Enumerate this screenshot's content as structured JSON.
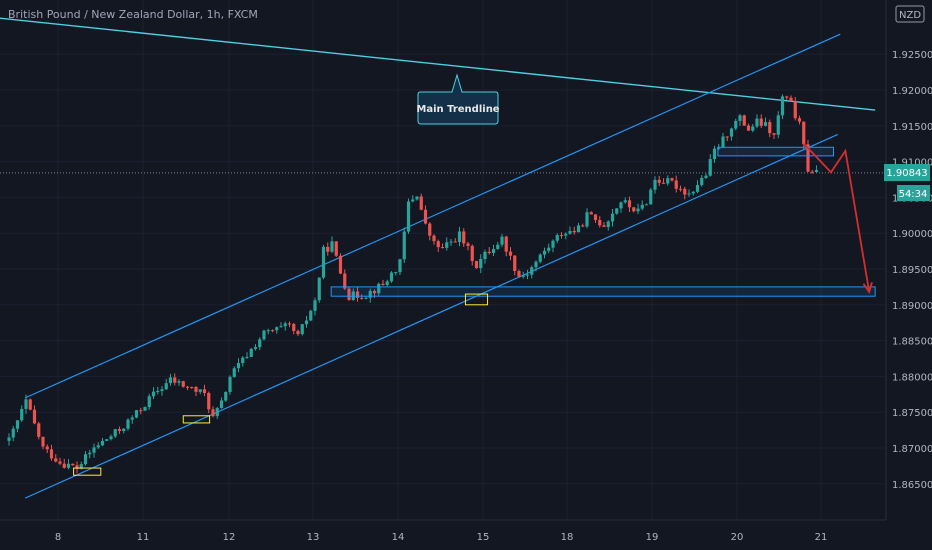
{
  "header": {
    "title": "British Pound / New Zealand Dollar, 1h, FXCM"
  },
  "currency_badge": "NZD",
  "price_label": "1.90843",
  "countdown_label": "54:34",
  "colors": {
    "background": "#131722",
    "up_candle": "#26a69a",
    "down_candle": "#ef5350",
    "channel": "#2196f3",
    "trendline": "#4dd0e1",
    "projection": "#d32f2f",
    "highlight_box": "#ffeb3b",
    "price_badge": "#26a69a"
  },
  "annotation": {
    "label": "Main Trendline"
  },
  "chart_data": {
    "type": "candlestick",
    "title": "British Pound / New Zealand Dollar, 1h, FXCM",
    "symbol": "GBPNZD",
    "timeframe": "1h",
    "source": "FXCM",
    "x_ticks": [
      "8",
      "11",
      "12",
      "13",
      "14",
      "15",
      "18",
      "19",
      "20",
      "21"
    ],
    "y_ticks": [
      "1.86500",
      "1.87000",
      "1.87500",
      "1.88000",
      "1.88500",
      "1.89000",
      "1.89500",
      "1.90000",
      "1.90500",
      "1.91000",
      "1.91500",
      "1.92000",
      "1.92500"
    ],
    "ylim": [
      1.8605,
      1.9305
    ],
    "last_price": 1.90843,
    "grid": true,
    "candle_path": [
      [
        0,
        1.871
      ],
      [
        2,
        1.8765
      ],
      [
        4,
        1.87
      ],
      [
        6,
        1.868
      ],
      [
        8,
        1.8672
      ],
      [
        10,
        1.87
      ],
      [
        13,
        1.8725
      ],
      [
        15,
        1.8748
      ],
      [
        17,
        1.8775
      ],
      [
        19,
        1.8795
      ],
      [
        21,
        1.8785
      ],
      [
        23,
        1.8775
      ],
      [
        24,
        1.8742
      ],
      [
        25,
        1.8762
      ],
      [
        26,
        1.88
      ],
      [
        28,
        1.883
      ],
      [
        30,
        1.886
      ],
      [
        33,
        1.887
      ],
      [
        34,
        1.8855
      ],
      [
        36,
        1.8905
      ],
      [
        37,
        1.8975
      ],
      [
        38,
        1.8985
      ],
      [
        39,
        1.8945
      ],
      [
        40,
        1.8912
      ],
      [
        42,
        1.8915
      ],
      [
        44,
        1.8928
      ],
      [
        46,
        1.8958
      ],
      [
        47,
        1.9042
      ],
      [
        48,
        1.9055
      ],
      [
        49,
        1.901
      ],
      [
        50,
        1.8985
      ],
      [
        51,
        1.8978
      ],
      [
        53,
        1.8998
      ],
      [
        55,
        1.8955
      ],
      [
        56,
        1.897
      ],
      [
        58,
        1.8992
      ],
      [
        60,
        1.894
      ],
      [
        61,
        1.8945
      ],
      [
        63,
        1.8975
      ],
      [
        65,
        1.9
      ],
      [
        67,
        1.9005
      ],
      [
        68,
        1.9025
      ],
      [
        70,
        1.9012
      ],
      [
        72,
        1.9045
      ],
      [
        74,
        1.903
      ],
      [
        75,
        1.9045
      ],
      [
        76,
        1.9075
      ],
      [
        78,
        1.907
      ],
      [
        80,
        1.9055
      ],
      [
        82,
        1.9082
      ],
      [
        83,
        1.9115
      ],
      [
        84,
        1.913
      ],
      [
        85,
        1.915
      ],
      [
        86,
        1.916
      ],
      [
        87,
        1.9145
      ],
      [
        88,
        1.9155
      ],
      [
        89,
        1.915
      ],
      [
        90,
        1.9135
      ],
      [
        91,
        1.919
      ],
      [
        92,
        1.918
      ],
      [
        93,
        1.915
      ],
      [
        94,
        1.909
      ],
      [
        95,
        1.9085
      ]
    ],
    "trendline": {
      "label": "Main Trendline",
      "points": [
        [
          -2.4,
          1.9302
        ],
        [
          101.9,
          1.9172
        ]
      ]
    },
    "channel_upper": [
      [
        1.9,
        1.877
      ],
      [
        97.8,
        1.9278
      ]
    ],
    "channel_lower": [
      [
        1.9,
        1.863
      ],
      [
        97.5,
        1.9138
      ]
    ],
    "zones": [
      {
        "name": "support",
        "x": [
          37.9,
          101.9
        ],
        "y": [
          1.8912,
          1.8925
        ]
      },
      {
        "name": "channel-break",
        "x": [
          83.4,
          97.0
        ],
        "y": [
          1.9108,
          1.912
        ]
      }
    ],
    "touch_boxes": [
      {
        "name": "touch-1",
        "x": [
          7.6,
          10.8
        ],
        "y": [
          1.8662,
          1.8672
        ]
      },
      {
        "name": "touch-2",
        "x": [
          20.5,
          23.6
        ],
        "y": [
          1.8735,
          1.8745
        ]
      },
      {
        "name": "touch-3",
        "x": [
          53.7,
          56.3
        ],
        "y": [
          1.89,
          1.8915
        ]
      }
    ],
    "projection": [
      [
        93.5,
        1.9125
      ],
      [
        96.7,
        1.9085
      ],
      [
        98.4,
        1.9115
      ],
      [
        101.2,
        1.8918
      ]
    ]
  }
}
